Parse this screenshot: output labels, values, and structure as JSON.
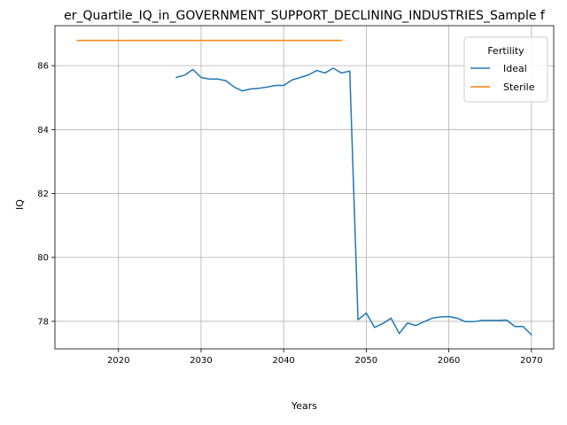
{
  "chart_data": {
    "type": "line",
    "title": "er_Quartile_IQ_in_GOVERNMENT_SUPPORT_DECLINING_INDUSTRIES_Sample f",
    "xlabel": "Years",
    "ylabel": "IQ",
    "xlim": [
      2012.3,
      2072.7
    ],
    "ylim": [
      77.14,
      87.25
    ],
    "x_ticks": [
      2020,
      2030,
      2040,
      2050,
      2060,
      2070
    ],
    "y_ticks": [
      78,
      80,
      82,
      84,
      86
    ],
    "grid": true,
    "legend": {
      "title": "Fertility",
      "placement": "top-right"
    },
    "series": [
      {
        "name": "Ideal",
        "color": "#1f77b4",
        "x": [
          2027,
          2028,
          2029,
          2030,
          2031,
          2032,
          2033,
          2034,
          2035,
          2036,
          2037,
          2038,
          2039,
          2040,
          2041,
          2042,
          2043,
          2044,
          2045,
          2046,
          2047,
          2048,
          2049,
          2050,
          2051,
          2052,
          2053,
          2054,
          2055,
          2056,
          2057,
          2058,
          2059,
          2060,
          2061,
          2062,
          2063,
          2064,
          2065,
          2066,
          2067,
          2068,
          2069,
          2070
        ],
        "y": [
          85.63,
          85.7,
          85.88,
          85.63,
          85.58,
          85.58,
          85.53,
          85.33,
          85.21,
          85.27,
          85.29,
          85.33,
          85.38,
          85.38,
          85.55,
          85.63,
          85.71,
          85.85,
          85.77,
          85.92,
          85.77,
          85.83,
          78.05,
          78.26,
          77.81,
          77.93,
          78.1,
          77.62,
          77.95,
          77.87,
          77.99,
          78.1,
          78.14,
          78.15,
          78.1,
          77.99,
          77.99,
          78.03,
          78.03,
          78.03,
          78.04,
          77.84,
          77.84,
          77.58
        ]
      },
      {
        "name": "Sterile",
        "color": "#ff7f0e",
        "x": [
          2015,
          2047
        ],
        "y": [
          86.79,
          86.79
        ]
      }
    ]
  }
}
